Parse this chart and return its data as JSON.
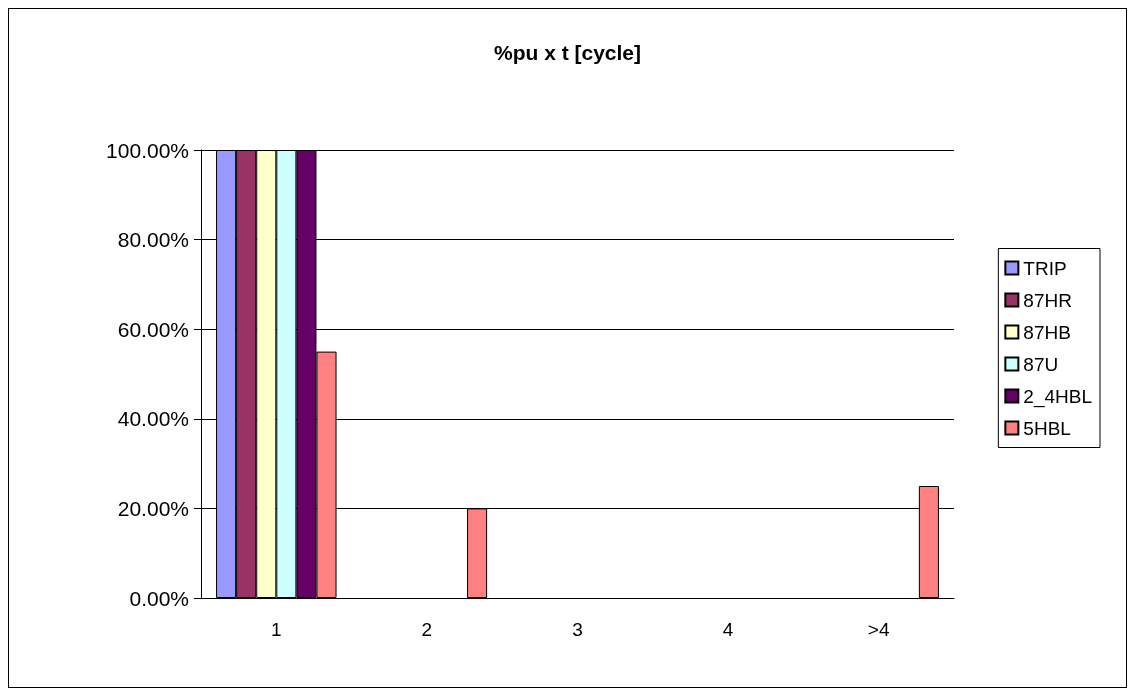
{
  "chart_data": {
    "type": "bar",
    "title": "%pu x t [cycle]",
    "categories": [
      "1",
      "2",
      "3",
      "4",
      ">4"
    ],
    "series": [
      {
        "name": "TRIP",
        "color": "#9999ff",
        "values": [
          100,
          0,
          0,
          0,
          0
        ]
      },
      {
        "name": "87HR",
        "color": "#993366",
        "values": [
          100,
          0,
          0,
          0,
          0
        ]
      },
      {
        "name": "87HB",
        "color": "#ffffcc",
        "values": [
          100,
          0,
          0,
          0,
          0
        ]
      },
      {
        "name": "87U",
        "color": "#ccffff",
        "values": [
          100,
          0,
          0,
          0,
          0
        ]
      },
      {
        "name": "2_4HBL",
        "color": "#660066",
        "values": [
          100,
          0,
          0,
          0,
          0
        ]
      },
      {
        "name": "5HBL",
        "color": "#ff8080",
        "values": [
          55,
          20,
          0,
          0,
          25
        ]
      }
    ],
    "ylim": [
      0,
      100
    ],
    "yticks": [
      {
        "value": 0,
        "label": "0.00%"
      },
      {
        "value": 20,
        "label": "20.00%"
      },
      {
        "value": 40,
        "label": "40.00%"
      },
      {
        "value": 60,
        "label": "60.00%"
      },
      {
        "value": 80,
        "label": "80.00%"
      },
      {
        "value": 100,
        "label": "100.00%"
      }
    ],
    "grid": "y",
    "legend": "right"
  }
}
